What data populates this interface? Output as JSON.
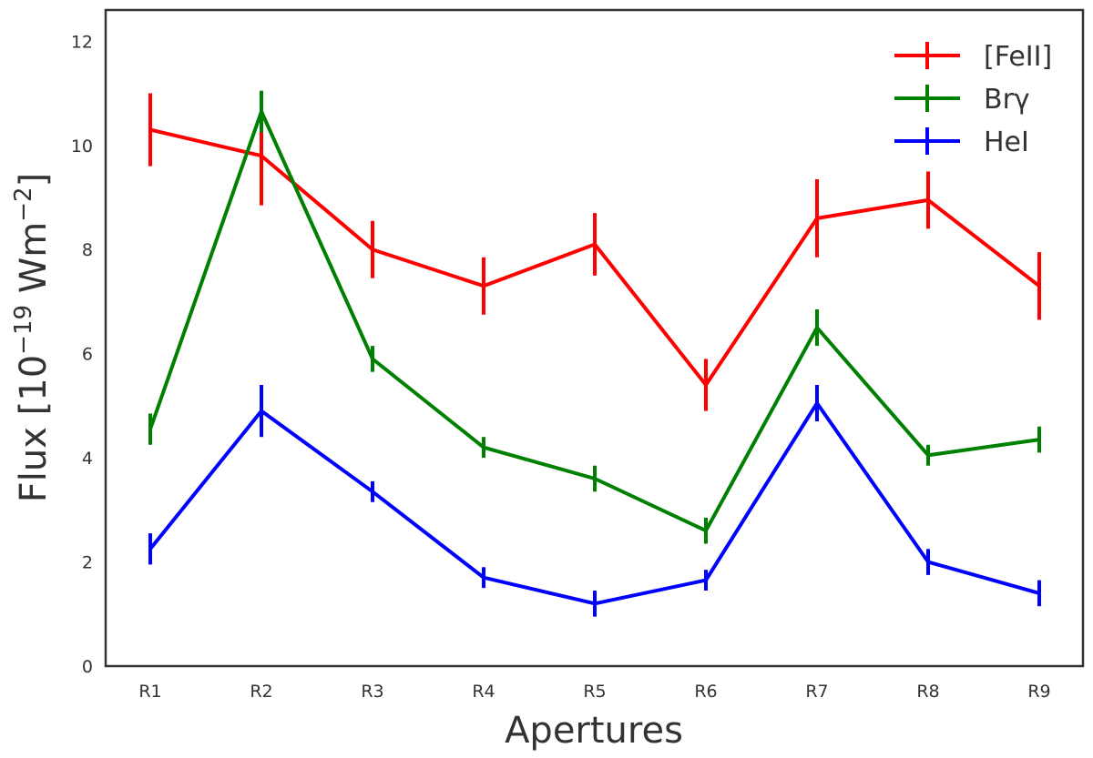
{
  "chart_data": {
    "type": "line",
    "title": "",
    "xlabel": "Apertures",
    "ylabel": {
      "prefix": "Flux [10",
      "exp1": "−19",
      "middle": " Wm",
      "exp2": "−2",
      "suffix": "]"
    },
    "categories": [
      "R1",
      "R2",
      "R3",
      "R4",
      "R5",
      "R6",
      "R7",
      "R8",
      "R9"
    ],
    "ylim": [
      0,
      12.6
    ],
    "yticks": [
      0,
      2,
      4,
      6,
      8,
      10,
      12
    ],
    "grid": false,
    "legend_position": "top-right",
    "series": [
      {
        "name": "[FeII]",
        "color": "#ff0000",
        "values": [
          10.3,
          9.8,
          8.0,
          7.3,
          8.1,
          5.4,
          8.6,
          8.95,
          7.3
        ],
        "errors": [
          0.7,
          0.95,
          0.55,
          0.55,
          0.6,
          0.5,
          0.75,
          0.55,
          0.65
        ]
      },
      {
        "name": "Brγ",
        "color": "#008000",
        "values": [
          4.55,
          10.65,
          5.9,
          4.2,
          3.6,
          2.6,
          6.5,
          4.05,
          4.35
        ],
        "errors": [
          0.3,
          0.4,
          0.25,
          0.2,
          0.25,
          0.25,
          0.35,
          0.2,
          0.25
        ]
      },
      {
        "name": "HeI",
        "color": "#0000ff",
        "values": [
          2.25,
          4.9,
          3.35,
          1.7,
          1.2,
          1.65,
          5.05,
          2.0,
          1.4
        ],
        "errors": [
          0.3,
          0.5,
          0.2,
          0.2,
          0.25,
          0.2,
          0.35,
          0.25,
          0.25
        ]
      }
    ]
  }
}
